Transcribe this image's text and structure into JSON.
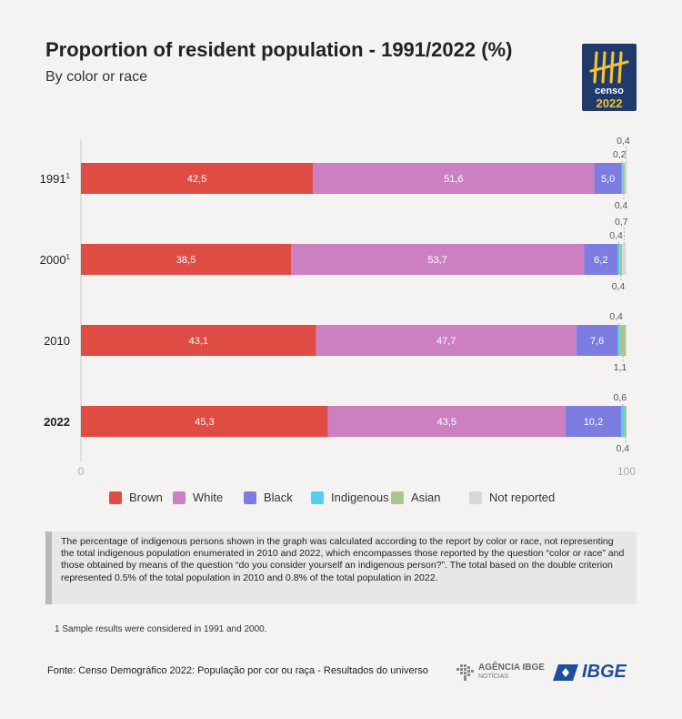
{
  "header": {
    "title": "Proportion of resident population - 1991/2022 (%)",
    "subtitle": "By color or race"
  },
  "logo": {
    "censo": "censo",
    "year": "2022"
  },
  "colors": {
    "Brown": "#de4c44",
    "White": "#cc80c2",
    "Black": "#7d7ce0",
    "Indigenous": "#4fd0ee",
    "Asian": "#a9c592",
    "Not reported": "#d7d7d7"
  },
  "chart_data": {
    "type": "bar",
    "orientation": "horizontal",
    "stacked": true,
    "categories": [
      "1991",
      "2000",
      "2010",
      "2022"
    ],
    "category_labels": [
      {
        "text": "1991",
        "sup": "1",
        "bold": false
      },
      {
        "text": "2000",
        "sup": "1",
        "bold": false
      },
      {
        "text": "2010",
        "sup": "",
        "bold": false
      },
      {
        "text": "2022",
        "sup": "",
        "bold": true
      }
    ],
    "series": [
      {
        "name": "Brown",
        "values": [
          42.5,
          38.5,
          43.1,
          45.3
        ],
        "labels": [
          "42,5",
          "38,5",
          "43,1",
          "45,3"
        ]
      },
      {
        "name": "White",
        "values": [
          51.6,
          53.7,
          47.7,
          43.5
        ],
        "labels": [
          "51,6",
          "53,7",
          "47,7",
          "43,5"
        ]
      },
      {
        "name": "Black",
        "values": [
          5.0,
          6.2,
          7.6,
          10.2
        ],
        "labels": [
          "5,0",
          "6,2",
          "7,6",
          "10,2"
        ]
      },
      {
        "name": "Indigenous",
        "values": [
          0.2,
          0.4,
          0.4,
          0.6
        ],
        "labels": [
          "0,2",
          "0,4",
          "0,4",
          "0,6"
        ]
      },
      {
        "name": "Asian",
        "values": [
          0.4,
          0.4,
          1.1,
          0.4
        ],
        "labels": [
          "0,4",
          "0,4",
          "1,1",
          "0,4"
        ]
      },
      {
        "name": "Not reported",
        "values": [
          0.4,
          0.7,
          0,
          0
        ],
        "labels": [
          "0,4",
          "0,7",
          "",
          ""
        ]
      }
    ],
    "xlim": [
      0,
      100
    ],
    "xticks": [
      "0",
      "100"
    ],
    "legend": "bottom"
  },
  "note": "The percentage of indigenous persons shown in the graph was calculated according to the report by color or race, not representing the total indigenous population enumerated in 2010 and 2022, which encompasses those reported by the question “color or race” and those obtained by means of the question “do you consider yourself an indigenous person?”. The total based on the double criterion represented 0.5% of the total population in 2010 and 0.8% of the total population in 2022.",
  "footnote": "1  Sample results were considered in 1991 and 2000.",
  "source": "Fonte: Censo Demográfico 2022: População por cor ou raça - Resultados do universo",
  "agencia": {
    "top": "AGÊNCIA IBGE",
    "bottom": "NOTÍCIAS"
  },
  "ibge": "IBGE"
}
